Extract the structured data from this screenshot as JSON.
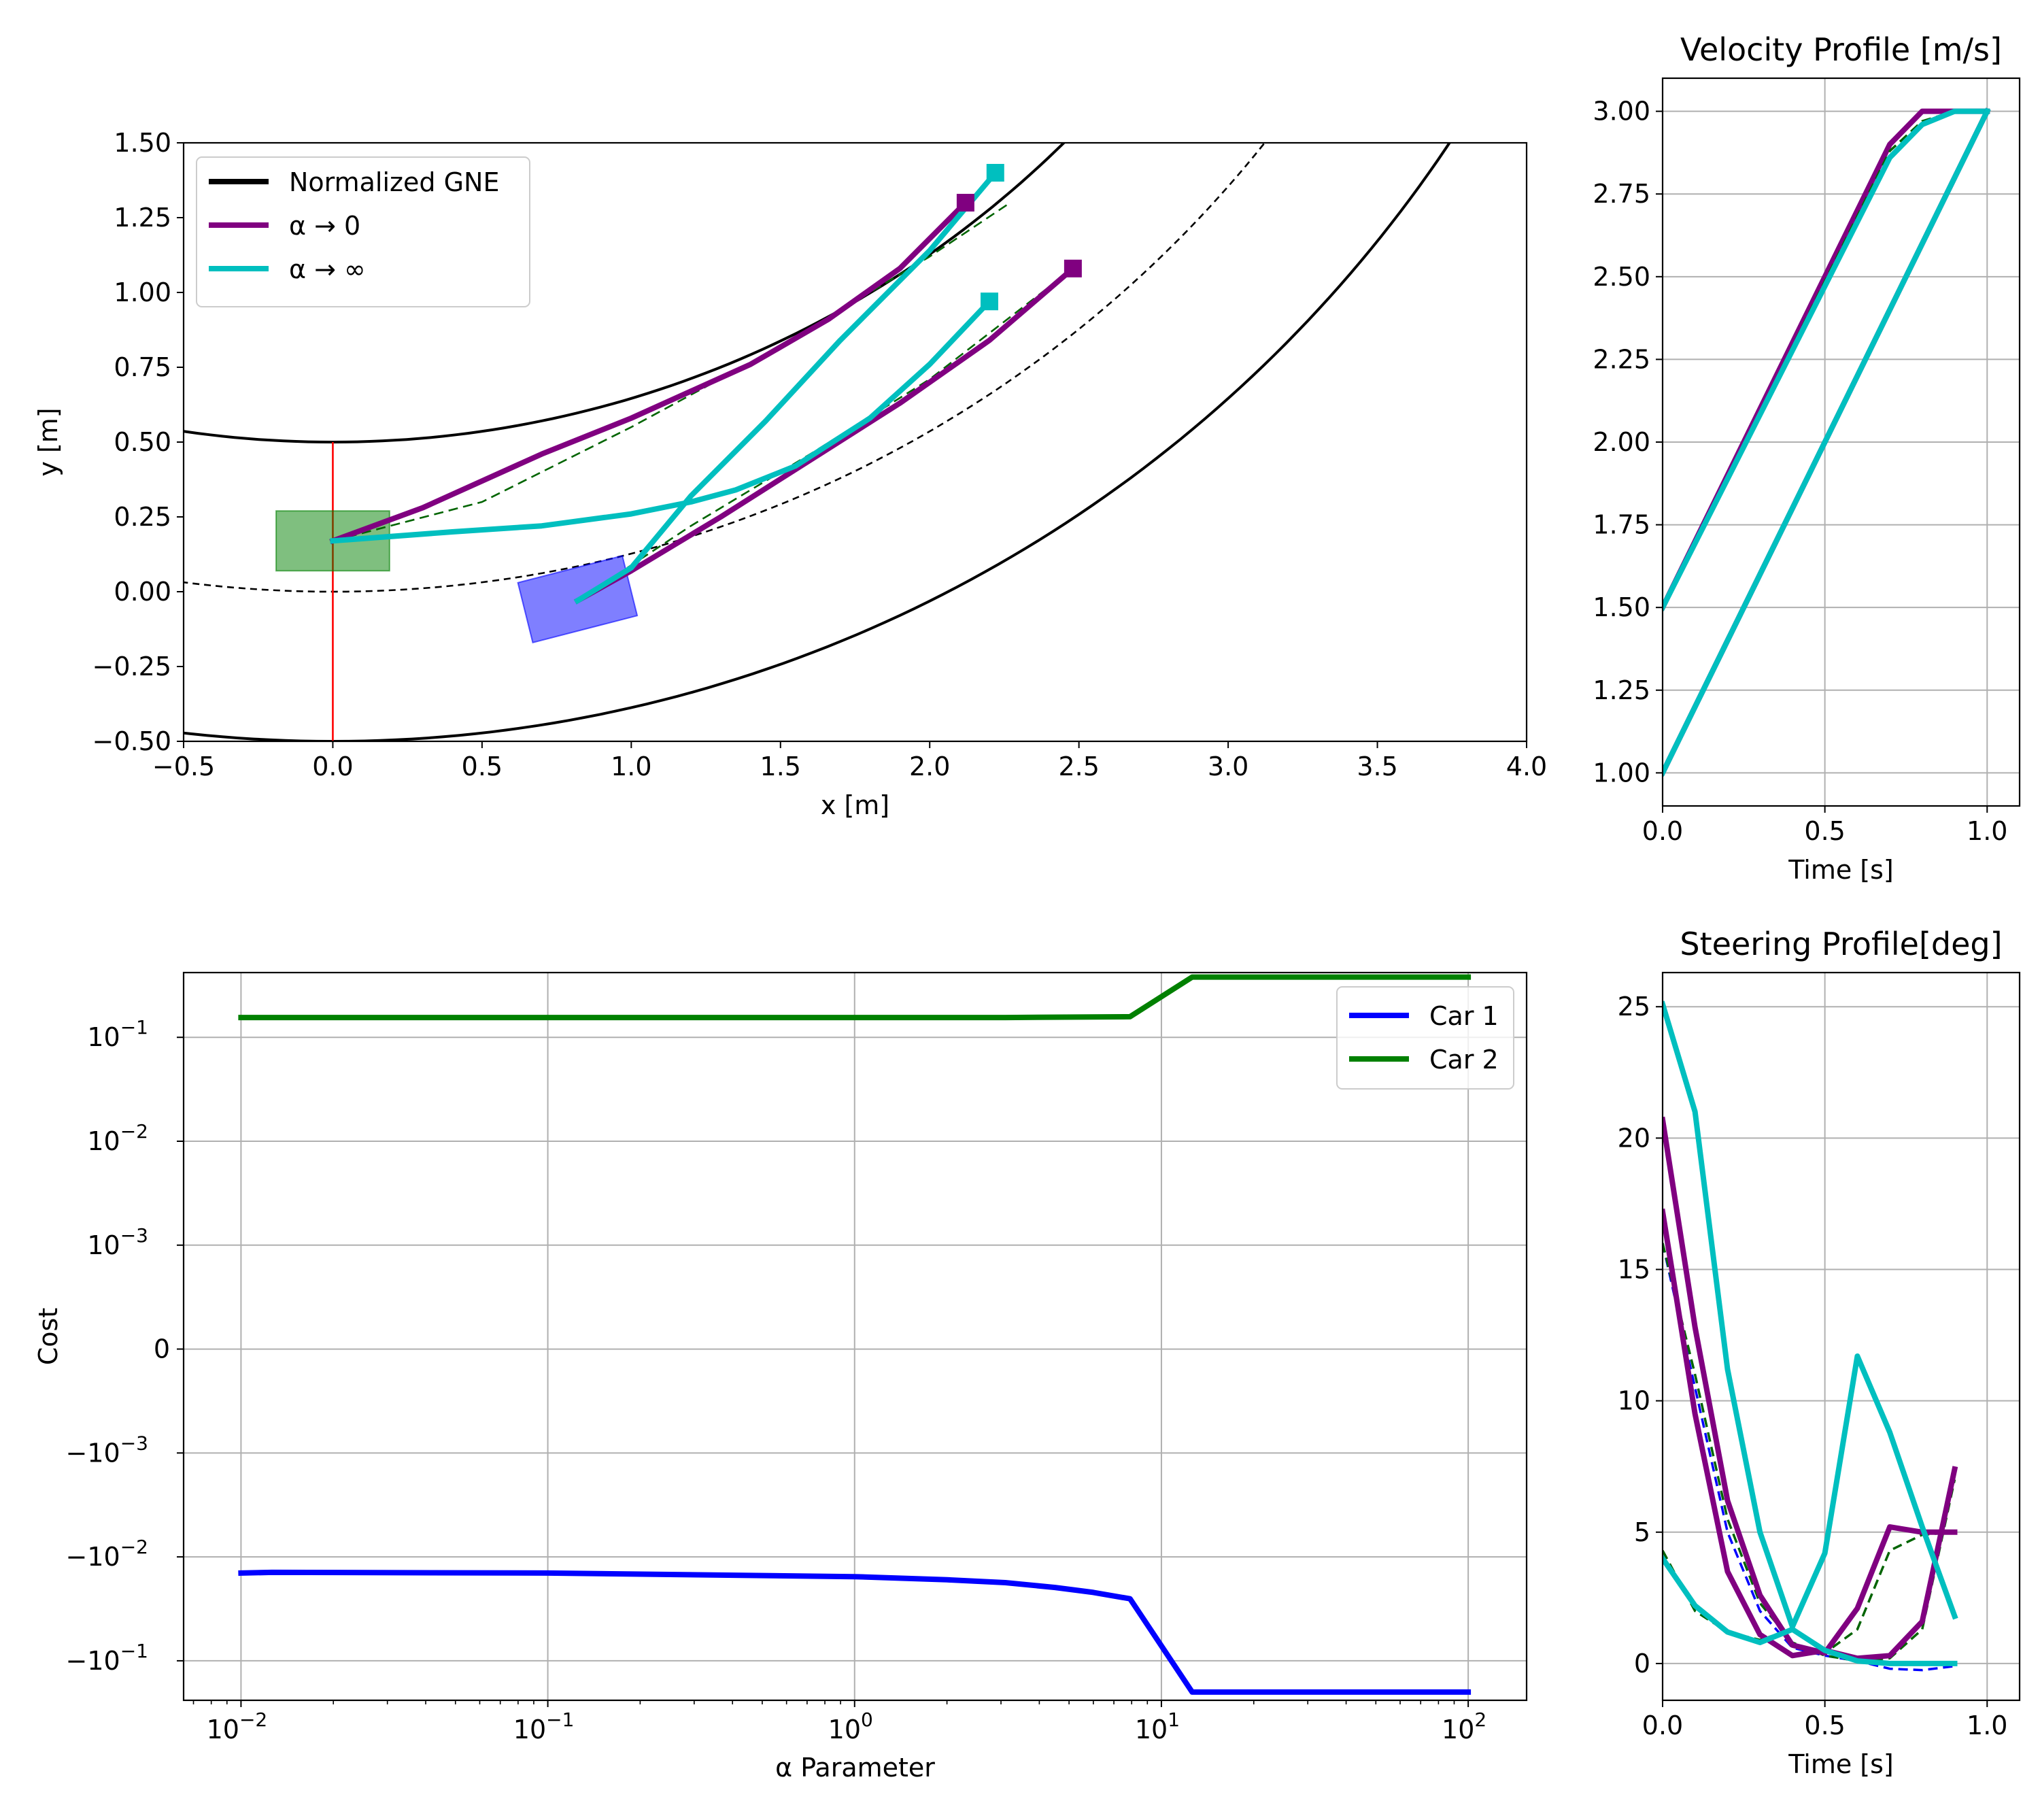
{
  "colors": {
    "purple": "#800080",
    "cyan": "#00bfbf",
    "green": "#008000",
    "blue": "#0000ff",
    "black": "#000000",
    "red": "#ff0000",
    "grid": "#b0b0b0"
  },
  "chart_data": [
    {
      "id": "trajectories",
      "type": "line",
      "title": "",
      "xlabel": "x [m]",
      "ylabel": "y [m]",
      "xlim": [
        -0.5,
        4.0
      ],
      "ylim": [
        -0.5,
        1.5
      ],
      "xticks": [
        -0.5,
        0.0,
        0.5,
        1.0,
        1.5,
        2.0,
        2.5,
        3.0,
        3.5,
        4.0
      ],
      "xtick_labels": [
        "−0.5",
        "0.0",
        "0.5",
        "1.0",
        "1.5",
        "2.0",
        "2.5",
        "3.0",
        "3.5",
        "4.0"
      ],
      "yticks": [
        -0.5,
        -0.25,
        0.0,
        0.25,
        0.5,
        0.75,
        1.0,
        1.25,
        1.5
      ],
      "ytick_labels": [
        "−0.50",
        "−0.25",
        "0.00",
        "0.25",
        "0.50",
        "0.75",
        "1.00",
        "1.25",
        "1.50"
      ],
      "grid": false,
      "legend": {
        "position": "top-left",
        "entries": [
          {
            "label": "Normalized GNE",
            "color": "#000000"
          },
          {
            "label": "α →  0",
            "color": "#800080"
          },
          {
            "label": "α → ∞",
            "color": "#00bfbf"
          }
        ]
      },
      "road": {
        "center": [
          0,
          4.0
        ],
        "center_radius": 4.0,
        "inner_radius": 3.5,
        "outer_radius": 4.5
      },
      "red_line": {
        "x": 0.0,
        "y_from": -0.5,
        "y_to": 0.5
      },
      "cars": [
        {
          "name": "green-car",
          "color": "#008000",
          "corners": [
            [
              -0.19,
              0.07
            ],
            [
              0.19,
              0.07
            ],
            [
              0.19,
              0.27
            ],
            [
              -0.19,
              0.27
            ]
          ]
        },
        {
          "name": "blue-car",
          "color": "#0000ff",
          "corners": [
            [
              0.62,
              0.03
            ],
            [
              0.97,
              0.12
            ],
            [
              1.02,
              -0.08
            ],
            [
              0.67,
              -0.17
            ]
          ]
        }
      ],
      "series": [
        {
          "name": "gne-car1",
          "style": "dashed",
          "color": "#006400",
          "x": [
            0.0,
            0.5,
            1.0,
            1.5,
            2.0,
            2.27
          ],
          "y": [
            0.17,
            0.3,
            0.55,
            0.82,
            1.12,
            1.3
          ]
        },
        {
          "name": "gne-car2",
          "style": "dashed",
          "color": "#006400",
          "x": [
            0.82,
            1.2,
            1.6,
            2.0,
            2.48
          ],
          "y": [
            -0.03,
            0.22,
            0.46,
            0.71,
            1.08
          ]
        },
        {
          "name": "alpha-zero-car1",
          "color": "#800080",
          "x": [
            0.0,
            0.3,
            0.7,
            1.0,
            1.4,
            1.66,
            1.9,
            2.12
          ],
          "y": [
            0.17,
            0.28,
            0.46,
            0.58,
            0.76,
            0.91,
            1.08,
            1.3
          ]
        },
        {
          "name": "alpha-zero-car2",
          "color": "#800080",
          "x": [
            0.82,
            1.0,
            1.3,
            1.6,
            1.9,
            2.2,
            2.48
          ],
          "y": [
            -0.03,
            0.07,
            0.25,
            0.44,
            0.63,
            0.84,
            1.08
          ]
        },
        {
          "name": "alpha-inf-car1",
          "color": "#00bfbf",
          "x": [
            0.0,
            0.4,
            0.7,
            1.0,
            1.2,
            1.35,
            1.55,
            1.8,
            2.0,
            2.2
          ],
          "y": [
            0.17,
            0.2,
            0.22,
            0.26,
            0.3,
            0.34,
            0.42,
            0.58,
            0.76,
            0.97
          ]
        },
        {
          "name": "alpha-inf-car2",
          "color": "#00bfbf",
          "x": [
            0.82,
            1.0,
            1.2,
            1.45,
            1.7,
            2.0,
            2.22
          ],
          "y": [
            -0.03,
            0.08,
            0.32,
            0.57,
            0.84,
            1.14,
            1.4
          ]
        }
      ],
      "endpoints": [
        {
          "name": "alpha-zero-end-1",
          "color": "#800080",
          "x": 2.12,
          "y": 1.3
        },
        {
          "name": "alpha-zero-end-2",
          "color": "#800080",
          "x": 2.48,
          "y": 1.08
        },
        {
          "name": "alpha-inf-end-1",
          "color": "#00bfbf",
          "x": 2.22,
          "y": 1.4
        },
        {
          "name": "alpha-inf-end-2",
          "color": "#00bfbf",
          "x": 2.2,
          "y": 0.97
        }
      ]
    },
    {
      "id": "velocity",
      "type": "line",
      "title": "Velocity Profile [m/s]",
      "xlabel": "Time [s]",
      "ylabel": "",
      "xlim": [
        0.0,
        1.1
      ],
      "ylim": [
        0.9,
        3.1
      ],
      "xticks": [
        0.0,
        0.5,
        1.0
      ],
      "xtick_labels": [
        "0.0",
        "0.5",
        "1.0"
      ],
      "yticks": [
        1.0,
        1.25,
        1.5,
        1.75,
        2.0,
        2.25,
        2.5,
        2.75,
        3.0
      ],
      "ytick_labels": [
        "1.00",
        "1.25",
        "1.50",
        "1.75",
        "2.00",
        "2.25",
        "2.50",
        "2.75",
        "3.00"
      ],
      "grid": true,
      "series": [
        {
          "name": "vel-purple-a",
          "color": "#800080",
          "x": [
            0.0,
            0.7,
            0.8,
            0.9,
            1.0
          ],
          "y": [
            1.5,
            2.9,
            3.0,
            3.0,
            3.0
          ]
        },
        {
          "name": "vel-gne-a",
          "style": "dashed",
          "color": "#006400",
          "x": [
            0.0,
            0.7,
            0.8,
            0.9,
            1.0
          ],
          "y": [
            1.5,
            2.88,
            2.97,
            3.0,
            3.0
          ]
        },
        {
          "name": "vel-cyan-a",
          "color": "#00bfbf",
          "x": [
            0.0,
            0.7,
            0.8,
            0.9,
            1.0
          ],
          "y": [
            1.5,
            2.86,
            2.96,
            3.0,
            3.0
          ]
        },
        {
          "name": "vel-purple-b",
          "color": "#800080",
          "x": [
            0.0,
            1.0
          ],
          "y": [
            1.0,
            3.0
          ]
        },
        {
          "name": "vel-cyan-b",
          "color": "#00bfbf",
          "x": [
            0.0,
            1.0
          ],
          "y": [
            1.0,
            3.0
          ]
        }
      ]
    },
    {
      "id": "cost",
      "type": "line",
      "title": "",
      "xlabel": "α Parameter",
      "ylabel": "Cost",
      "xscale": "log",
      "yscale": "symlog",
      "xlim": [
        0.0065,
        155
      ],
      "yticks": [
        0.1,
        0.01,
        0.001,
        0,
        -0.001,
        -0.01,
        -0.1
      ],
      "ytick_labels": [
        [
          "10",
          "−1"
        ],
        [
          "10",
          "−2"
        ],
        [
          "10",
          "−3"
        ],
        [
          "0",
          ""
        ],
        [
          "−10",
          "−3"
        ],
        [
          "−10",
          "−2"
        ],
        [
          "−10",
          "−1"
        ]
      ],
      "xticks": [
        0.01,
        0.1,
        1,
        10,
        100
      ],
      "xtick_labels": [
        [
          "10",
          "−2"
        ],
        [
          "10",
          "−1"
        ],
        [
          "10",
          "0"
        ],
        [
          "10",
          "1"
        ],
        [
          "10",
          "2"
        ]
      ],
      "grid": true,
      "legend": {
        "position": "top-right",
        "entries": [
          {
            "label": "Car 1",
            "color": "#0000ff"
          },
          {
            "label": "Car 2",
            "color": "#008000"
          }
        ]
      },
      "series": [
        {
          "name": "Car 1",
          "color": "#0000ff",
          "x": [
            0.01,
            0.0126,
            0.1,
            1,
            2,
            3.1,
            4.5,
            6,
            7.9,
            12.6,
            100
          ],
          "y": [
            -0.0143,
            -0.0141,
            -0.0143,
            -0.0155,
            -0.0166,
            -0.0177,
            -0.0197,
            -0.022,
            -0.0253,
            -0.2,
            -0.2
          ]
        },
        {
          "name": "Car 2",
          "color": "#008000",
          "x": [
            0.01,
            0.1,
            1,
            3.1,
            7.9,
            12.6,
            100
          ],
          "y": [
            0.155,
            0.155,
            0.155,
            0.155,
            0.158,
            0.38,
            0.38
          ]
        }
      ]
    },
    {
      "id": "steering",
      "type": "line",
      "title": "Steering Profile[deg]",
      "xlabel": "Time [s]",
      "ylabel": "",
      "xlim": [
        0.0,
        1.1
      ],
      "ylim": [
        -1.4,
        26.3
      ],
      "xticks": [
        0.0,
        0.5,
        1.0
      ],
      "xtick_labels": [
        "0.0",
        "0.5",
        "1.0"
      ],
      "yticks": [
        0,
        5,
        10,
        15,
        20,
        25
      ],
      "ytick_labels": [
        "0",
        "5",
        "10",
        "15",
        "20",
        "25"
      ],
      "grid": true,
      "series": [
        {
          "name": "steer-blue-dashed",
          "style": "dashed",
          "color": "#0000ff",
          "x": [
            0.0,
            0.1,
            0.2,
            0.3,
            0.4,
            0.5,
            0.6,
            0.7,
            0.8,
            0.9
          ],
          "y": [
            16.0,
            10.5,
            5.0,
            2.0,
            0.6,
            0.3,
            0.1,
            -0.2,
            -0.25,
            -0.1
          ]
        },
        {
          "name": "steer-green-dashed-a",
          "style": "dashed",
          "color": "#006400",
          "x": [
            0.0,
            0.1,
            0.2,
            0.3,
            0.4,
            0.5,
            0.6,
            0.7,
            0.8,
            0.9
          ],
          "y": [
            4.3,
            2.0,
            1.2,
            0.9,
            1.3,
            0.4,
            1.3,
            4.3,
            4.9,
            5.0
          ]
        },
        {
          "name": "steer-green-dashed-b",
          "style": "dashed",
          "color": "#006400",
          "x": [
            0.0,
            0.1,
            0.2,
            0.3,
            0.4,
            0.5,
            0.6,
            0.7,
            0.8,
            0.9
          ],
          "y": [
            16.0,
            11.0,
            5.5,
            2.3,
            0.8,
            0.3,
            0.1,
            0.2,
            1.3,
            7.0
          ]
        },
        {
          "name": "steer-purple-a",
          "color": "#800080",
          "x": [
            0.0,
            0.1,
            0.2,
            0.3,
            0.4,
            0.5,
            0.6,
            0.7,
            0.8,
            0.9
          ],
          "y": [
            20.7,
            12.8,
            6.2,
            2.6,
            0.7,
            0.4,
            2.1,
            5.2,
            5.0,
            5.0
          ]
        },
        {
          "name": "steer-purple-b",
          "color": "#800080",
          "x": [
            0.0,
            0.1,
            0.2,
            0.3,
            0.4,
            0.5,
            0.6,
            0.7,
            0.8,
            0.9
          ],
          "y": [
            17.2,
            9.5,
            3.5,
            1.1,
            0.3,
            0.5,
            0.2,
            0.3,
            1.6,
            7.4
          ]
        },
        {
          "name": "steer-cyan-a",
          "color": "#00bfbf",
          "x": [
            0.0,
            0.1,
            0.2,
            0.3,
            0.4,
            0.5,
            0.6,
            0.7,
            0.8,
            0.9
          ],
          "y": [
            25.1,
            21.0,
            11.2,
            5.0,
            1.4,
            4.2,
            11.7,
            8.8,
            5.2,
            1.8
          ]
        },
        {
          "name": "steer-cyan-b",
          "color": "#00bfbf",
          "x": [
            0.0,
            0.1,
            0.2,
            0.3,
            0.4,
            0.5,
            0.6,
            0.7,
            0.8,
            0.9
          ],
          "y": [
            4.0,
            2.2,
            1.2,
            0.8,
            1.3,
            0.5,
            0.1,
            0.0,
            0.0,
            0.0
          ]
        }
      ]
    }
  ]
}
